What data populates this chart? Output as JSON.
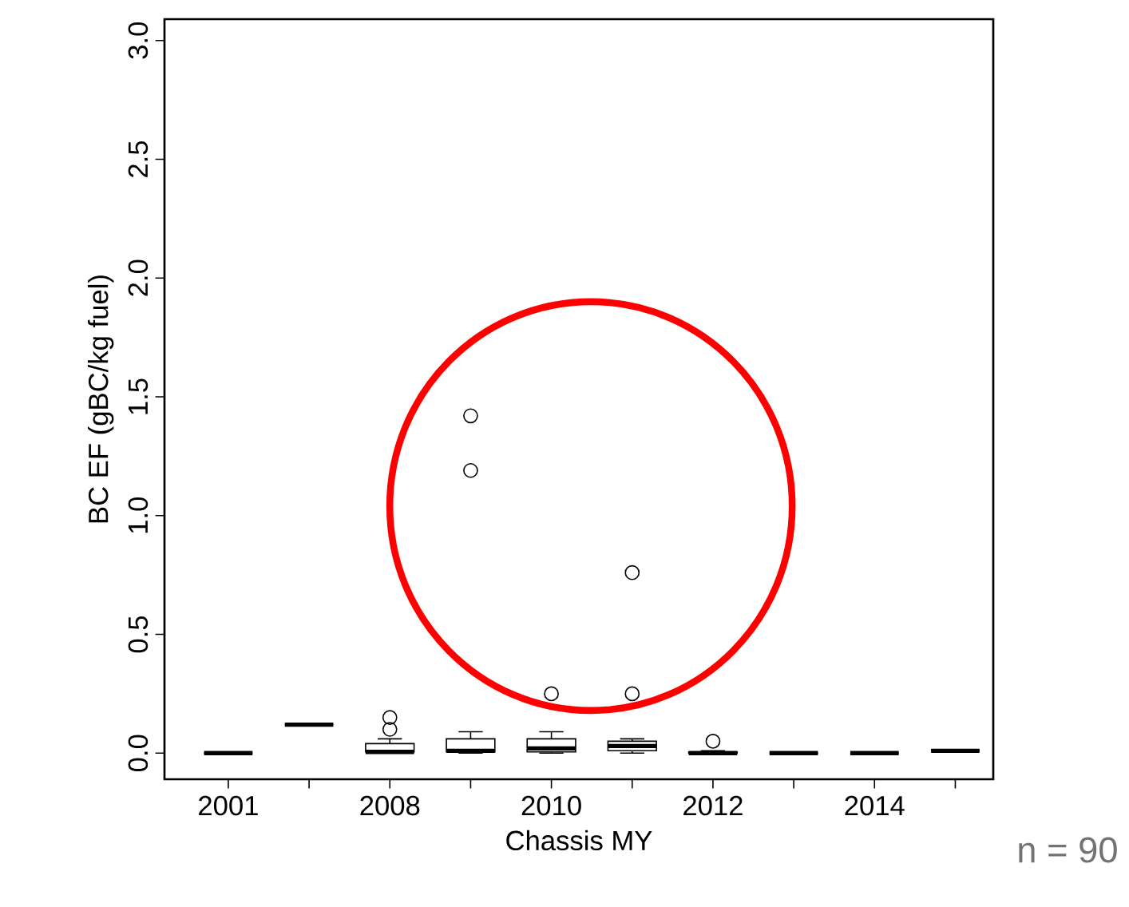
{
  "chart_data": {
    "type": "box",
    "xlabel": "Chassis MY",
    "ylabel": "BC EF (gBC/kg fuel)",
    "categories": [
      "2001",
      null,
      "2008",
      null,
      "2010",
      null,
      "2012",
      null,
      "2014",
      null
    ],
    "boxes": [
      {
        "low": 0,
        "q1": 0,
        "median": 0,
        "q3": 0,
        "high": 0
      },
      {
        "low": 0.12,
        "q1": 0.12,
        "median": 0.12,
        "q3": 0.12,
        "high": 0.12
      },
      {
        "low": 0,
        "q1": 0.005,
        "median": 0.005,
        "q3": 0.04,
        "high": 0.06,
        "outliers": [
          0.1,
          0.15
        ]
      },
      {
        "low": 0,
        "q1": 0.005,
        "median": 0.01,
        "q3": 0.06,
        "high": 0.09,
        "outliers": [
          1.19,
          1.42
        ]
      },
      {
        "low": 0,
        "q1": 0.005,
        "median": 0.02,
        "q3": 0.06,
        "high": 0.09,
        "outliers": [
          0.25
        ]
      },
      {
        "low": 0,
        "q1": 0.01,
        "median": 0.03,
        "q3": 0.05,
        "high": 0.06,
        "outliers": [
          0.25,
          0.76
        ]
      },
      {
        "low": 0,
        "q1": 0,
        "median": 0,
        "q3": 0.005,
        "high": 0.01,
        "outliers": [
          0.05
        ]
      },
      {
        "low": 0,
        "q1": 0,
        "median": 0,
        "q3": 0,
        "high": 0
      },
      {
        "low": 0,
        "q1": 0,
        "median": 0,
        "q3": 0,
        "high": 0
      },
      {
        "low": 0.01,
        "q1": 0.01,
        "median": 0.01,
        "q3": 0.01,
        "high": 0.01
      }
    ],
    "ylim": [
      -0.11,
      3.09
    ],
    "yticks": [
      {
        "value": 0,
        "label": "0.0"
      },
      {
        "value": 0.5,
        "label": "0.5"
      },
      {
        "value": 1,
        "label": "1.0"
      },
      {
        "value": 1.5,
        "label": "1.5"
      },
      {
        "value": 2,
        "label": "2.0"
      },
      {
        "value": 2.5,
        "label": "2.5"
      },
      {
        "value": 3,
        "label": "3.0"
      }
    ],
    "marker": "circle",
    "annotations": [
      "n = 90"
    ]
  }
}
